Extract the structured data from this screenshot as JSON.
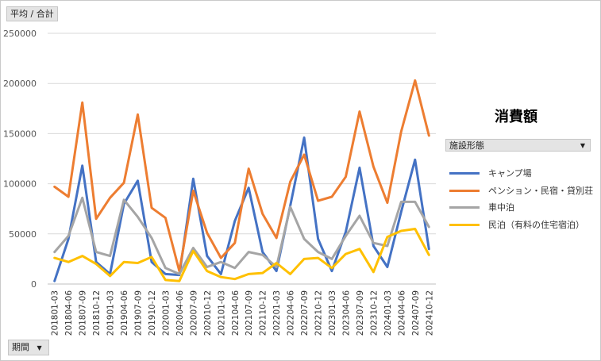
{
  "buttons": {
    "aggregate_label": "平均 / 合計",
    "period_label": "期間",
    "facility_label": "施設形態"
  },
  "icons": {
    "dropdown": "chevron-down-icon"
  },
  "chart_data": {
    "type": "line",
    "title": "消費額",
    "xlabel": "",
    "ylabel": "",
    "ylim": [
      0,
      250000
    ],
    "yticks": [
      0,
      50000,
      100000,
      150000,
      200000,
      250000
    ],
    "grid": true,
    "legend_position": "right",
    "categories": [
      "201801-03",
      "201804-06",
      "201807-09",
      "201810-12",
      "201901-03",
      "201904-06",
      "201907-09",
      "201910-12",
      "202001-03",
      "202004-06",
      "202007-09",
      "202010-12",
      "202101-03",
      "202104-06",
      "202107-09",
      "202110-12",
      "202201-03",
      "202204-06",
      "202207-09",
      "202210-12",
      "202301-03",
      "202304-06",
      "202307-09",
      "202310-12",
      "202401-03",
      "202404-06",
      "202407-09",
      "202410-12"
    ],
    "series": [
      {
        "name": "キャンプ場",
        "color": "#4472c4",
        "values": [
          3000,
          45000,
          118000,
          22000,
          10000,
          80000,
          103000,
          22000,
          10000,
          9000,
          105000,
          28000,
          10000,
          63000,
          96000,
          32000,
          13000,
          78000,
          146000,
          45000,
          13000,
          52000,
          116000,
          38000,
          17000,
          72000,
          124000,
          35000
        ]
      },
      {
        "name": "ペンション・民宿・貸別荘",
        "color": "#ed7d31",
        "values": [
          97000,
          87000,
          181000,
          65000,
          86000,
          101000,
          169000,
          76000,
          66000,
          13000,
          93000,
          51000,
          26000,
          41000,
          115000,
          70000,
          46000,
          102000,
          129000,
          83000,
          87000,
          107000,
          172000,
          117000,
          81000,
          152000,
          203000,
          148000
        ]
      },
      {
        "name": "車中泊",
        "color": "#a5a5a5",
        "values": [
          32000,
          48000,
          86000,
          32000,
          28000,
          84000,
          67000,
          46000,
          16000,
          10000,
          36000,
          17000,
          22000,
          16000,
          32000,
          29000,
          17000,
          77000,
          45000,
          32000,
          25000,
          48000,
          68000,
          41000,
          38000,
          82000,
          82000,
          57000
        ]
      },
      {
        "name": "民泊（有料の住宅宿泊）",
        "color": "#ffc000",
        "values": [
          26000,
          22000,
          28000,
          20000,
          8000,
          22000,
          21000,
          27000,
          4000,
          3000,
          33000,
          13000,
          7000,
          5000,
          10000,
          11000,
          21000,
          10000,
          25000,
          26000,
          16000,
          30000,
          35000,
          12000,
          47000,
          53000,
          55000,
          29000
        ]
      }
    ]
  }
}
